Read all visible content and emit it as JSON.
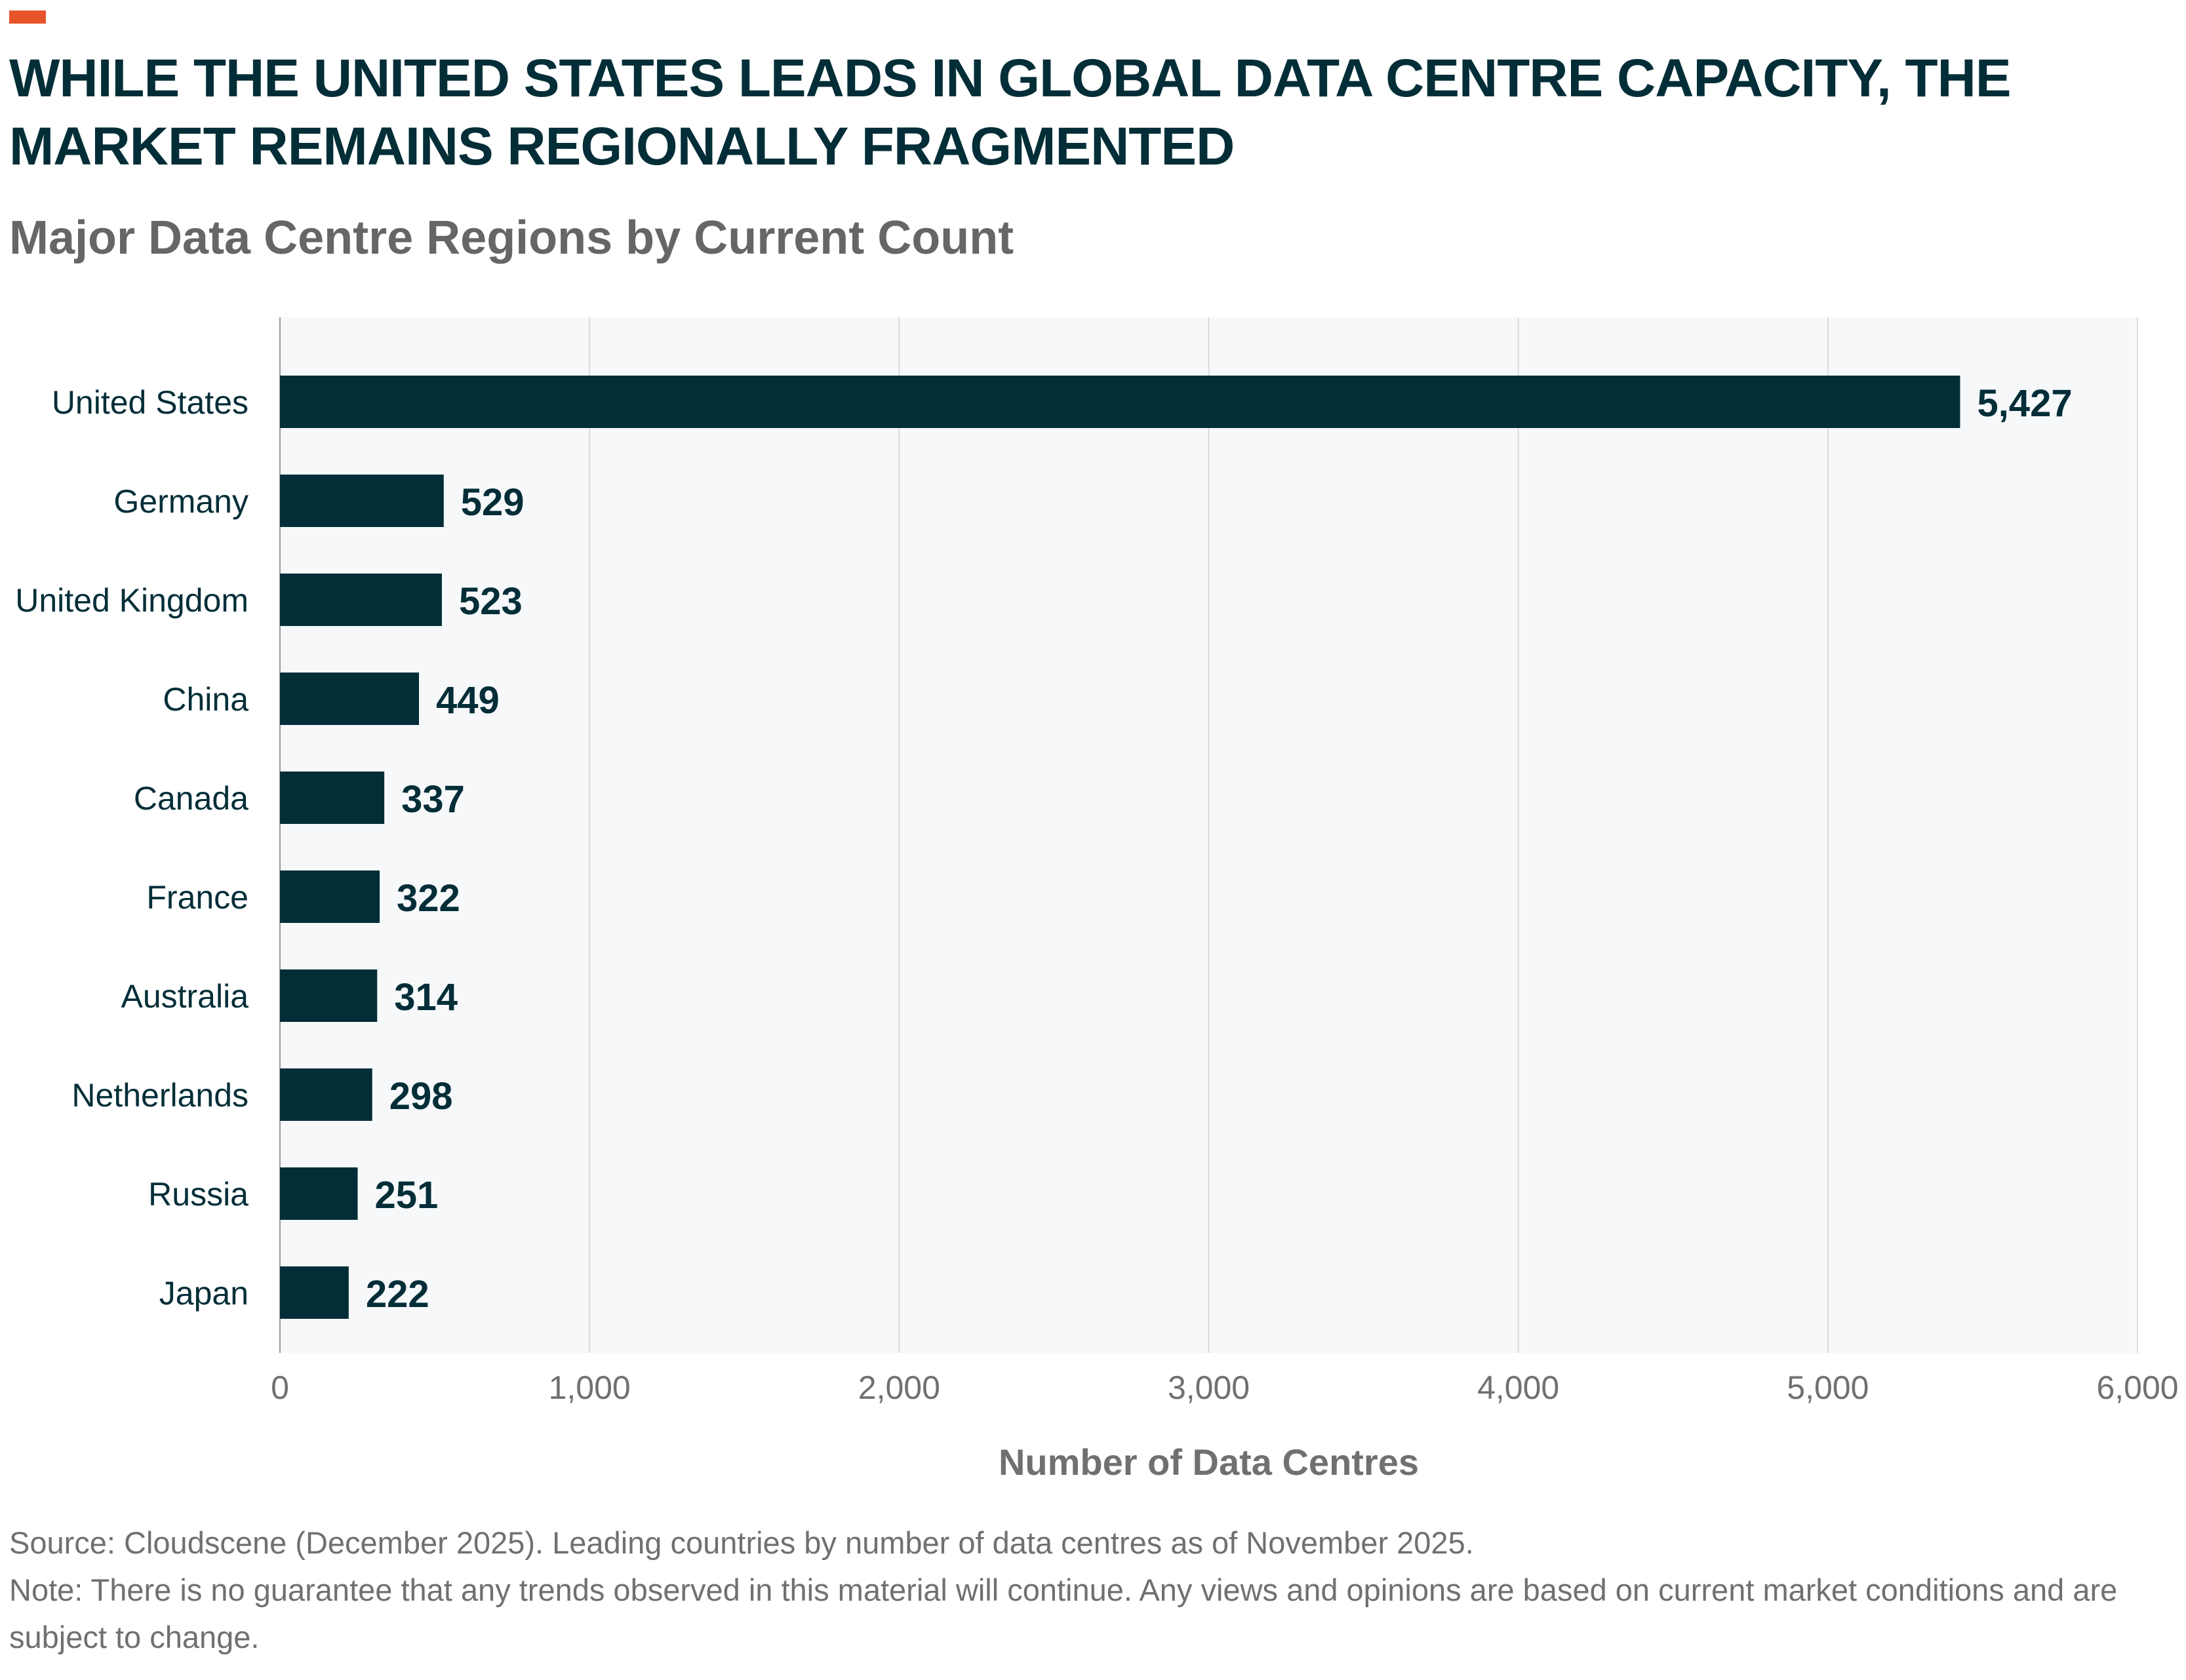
{
  "header": {
    "title": "WHILE THE UNITED STATES LEADS IN GLOBAL DATA CENTRE CAPACITY, THE MARKET REMAINS REGIONALLY FRAGMENTED",
    "subtitle": "Major Data Centre Regions by Current Count"
  },
  "colors": {
    "accent": "#e8542a",
    "bar": "#032e38",
    "title": "#032e38",
    "plot_background": "#f6f8fa",
    "gridline": "#d8dadc",
    "axis_text": "#707070"
  },
  "chart_data": {
    "type": "bar",
    "orientation": "horizontal",
    "title": "Major Data Centre Regions by Current Count",
    "categories": [
      "United States",
      "Germany",
      "United Kingdom",
      "China",
      "Canada",
      "France",
      "Australia",
      "Netherlands",
      "Russia",
      "Japan"
    ],
    "values": [
      5427,
      529,
      523,
      449,
      337,
      322,
      314,
      298,
      251,
      222
    ],
    "value_labels": [
      "5,427",
      "529",
      "523",
      "449",
      "337",
      "322",
      "314",
      "298",
      "251",
      "222"
    ],
    "xlabel": "Number of Data Centres",
    "ylabel": "",
    "xlim": [
      0,
      6000
    ],
    "xticks": [
      0,
      1000,
      2000,
      3000,
      4000,
      5000,
      6000
    ],
    "xtick_labels": [
      "0",
      "1,000",
      "2,000",
      "3,000",
      "4,000",
      "5,000",
      "6,000"
    ],
    "grid": true,
    "legend": "none"
  },
  "footer": {
    "source": "Source: Cloudscene (December 2025). Leading countries by number of data centres as of November 2025.",
    "note": "Note: There is no guarantee that any trends observed in this material will continue. Any views and opinions are based on current market conditions and are subject to change."
  }
}
